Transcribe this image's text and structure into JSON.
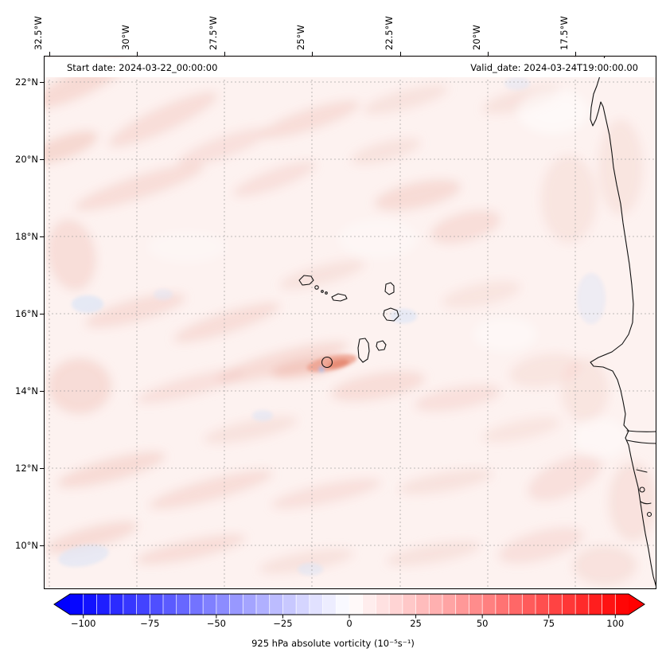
{
  "figure": {
    "header": {
      "start_date": "Start date: 2024-03-22_00:00:00",
      "valid_date": "Valid_date: 2024-03-24T19:00:00.00"
    },
    "caption": "925 hPa absolute vorticity (10⁻⁵s⁻¹)"
  },
  "axes": {
    "lon_ticks": [
      "32.5°W",
      "30°W",
      "27.5°W",
      "25°W",
      "22.5°W",
      "20°W",
      "17.5°W"
    ],
    "lat_ticks": [
      "22°N",
      "20°N",
      "18°N",
      "16°N",
      "14°N",
      "12°N",
      "10°N"
    ]
  },
  "colorbar": {
    "min": -105,
    "max": 105,
    "step": 5,
    "ticks": [
      {
        "value": -100,
        "label": "−100"
      },
      {
        "value": -75,
        "label": "−75"
      },
      {
        "value": -50,
        "label": "−50"
      },
      {
        "value": -25,
        "label": "−25"
      },
      {
        "value": 0,
        "label": "0"
      },
      {
        "value": 25,
        "label": "25"
      },
      {
        "value": 50,
        "label": "50"
      },
      {
        "value": 75,
        "label": "75"
      },
      {
        "value": 100,
        "label": "100"
      }
    ]
  },
  "chart_data": {
    "type": "heatmap",
    "title": "925 hPa absolute vorticity (10⁻⁵s⁻¹)",
    "start_date": "2024-03-22_00:00:00",
    "valid_date": "2024-03-24T19:00:00.00",
    "projection": "lat-lon map of the eastern tropical Atlantic (Cape Verde / West Africa)",
    "x_axis": {
      "label": "longitude",
      "ticks_deg_west": [
        32.5,
        30,
        27.5,
        25,
        22.5,
        20,
        17.5
      ],
      "range_deg_west": [
        32.7,
        15.1
      ]
    },
    "y_axis": {
      "label": "latitude",
      "ticks_deg_north": [
        22,
        20,
        18,
        16,
        14,
        12,
        10
      ],
      "range_deg_north": [
        8.9,
        22.7
      ]
    },
    "colorbar": {
      "label": "925 hPa absolute vorticity (10⁻⁵s⁻¹)",
      "ticks": [
        -100,
        -75,
        -50,
        -25,
        0,
        25,
        50,
        75,
        100
      ],
      "levels_range": [
        -105,
        105
      ],
      "level_step": 5,
      "colormap": "blue-white-red (bwr), arrow extensions on both ends"
    },
    "field_summary": [
      {
        "region": "most of domain",
        "value_range": [
          0,
          20
        ],
        "note": "weak positive vorticity; pale pink SW-NE oriented streaks"
      },
      {
        "region": "just west of Santiago/Fogo, Cape Verde (~24.8°W, 14.7°N)",
        "value_range": [
          30,
          60
        ],
        "note": "localized positive maximum (salmon streak) with a small adjacent negative (blue) spot"
      },
      {
        "region": "scattered spots (~32°W 15.6°N, ~22.6°W 16°N, ~32°W 9.2°N, ~18°W 16.5°N)",
        "value_range": [
          -15,
          0
        ],
        "note": "faint negative patches (very light blue)"
      }
    ],
    "overlays": [
      "West African coastline (Mauritania to Guinea) with Gambia river",
      "Cape Verde islands outlines",
      "dashed latitude/longitude gridlines"
    ]
  }
}
